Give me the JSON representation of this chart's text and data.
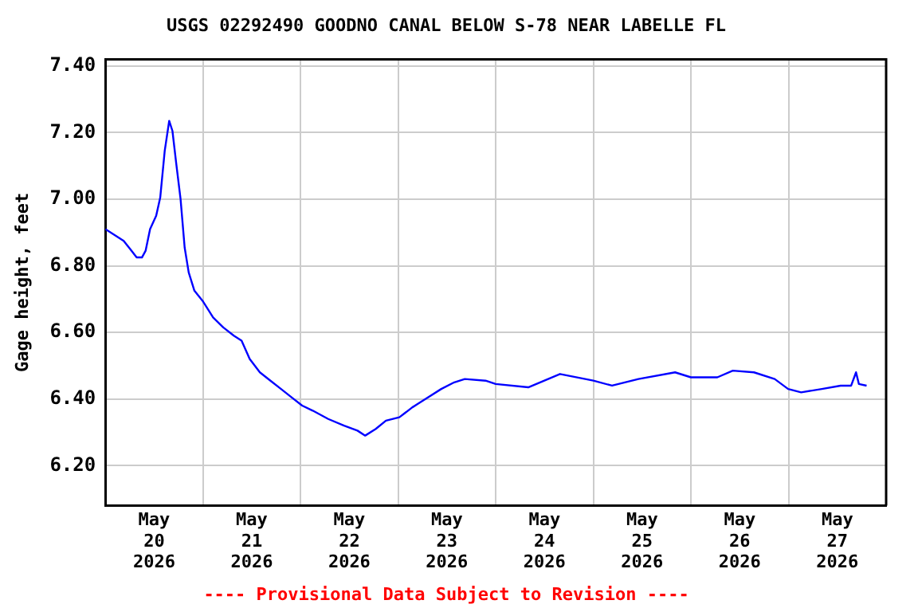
{
  "chart_data": {
    "type": "line",
    "title": "USGS 02292490 GOODNO CANAL BELOW S-78 NEAR LABELLE FL",
    "ylabel": "Gage height, feet",
    "annotations": [
      "---- Provisional Data Subject to Revision ----"
    ],
    "x": [
      "2026-05-20T00:00",
      "2026-05-20T02:36",
      "2026-05-20T04:30",
      "2026-05-20T06:06",
      "2026-05-20T07:42",
      "2026-05-20T09:00",
      "2026-05-20T09:54",
      "2026-05-20T11:00",
      "2026-05-20T12:30",
      "2026-05-20T13:30",
      "2026-05-20T14:36",
      "2026-05-20T15:42",
      "2026-05-20T16:30",
      "2026-05-20T17:24",
      "2026-05-20T18:30",
      "2026-05-20T19:30",
      "2026-05-20T20:30",
      "2026-05-20T21:54",
      "2026-05-20T23:54",
      "2026-05-21T02:30",
      "2026-05-21T05:00",
      "2026-05-21T07:36",
      "2026-05-21T09:30",
      "2026-05-21T11:30",
      "2026-05-21T14:00",
      "2026-05-21T16:36",
      "2026-05-21T19:12",
      "2026-05-21T21:48",
      "2026-05-22T00:24",
      "2026-05-22T03:00",
      "2026-05-22T06:48",
      "2026-05-22T10:42",
      "2026-05-22T14:00",
      "2026-05-22T15:54",
      "2026-05-22T18:30",
      "2026-05-22T21:00",
      "2026-05-23T00:18",
      "2026-05-23T03:30",
      "2026-05-23T07:24",
      "2026-05-23T10:36",
      "2026-05-23T13:48",
      "2026-05-23T16:24",
      "2026-05-23T21:30",
      "2026-05-24T00:00",
      "2026-05-24T08:00",
      "2026-05-24T15:48",
      "2026-05-25T00:00",
      "2026-05-25T04:36",
      "2026-05-25T11:06",
      "2026-05-25T20:06",
      "2026-05-26T00:00",
      "2026-05-26T06:30",
      "2026-05-26T10:18",
      "2026-05-26T15:30",
      "2026-05-26T20:36",
      "2026-05-26T23:54",
      "2026-05-27T03:06",
      "2026-05-27T08:12",
      "2026-05-27T12:48",
      "2026-05-27T15:24",
      "2026-05-27T16:36",
      "2026-05-27T17:18",
      "2026-05-27T19:12"
    ],
    "series": [
      {
        "color": "#0000ff",
        "values": [
          6.91,
          6.89,
          6.875,
          6.85,
          6.825,
          6.825,
          6.845,
          6.91,
          6.95,
          7.005,
          7.145,
          7.235,
          7.205,
          7.11,
          7.0,
          6.855,
          6.78,
          6.725,
          6.695,
          6.645,
          6.615,
          6.59,
          6.575,
          6.52,
          6.48,
          6.455,
          6.43,
          6.405,
          6.38,
          6.365,
          6.34,
          6.32,
          6.305,
          6.29,
          6.31,
          6.335,
          6.345,
          6.375,
          6.405,
          6.43,
          6.45,
          6.46,
          6.455,
          6.445,
          6.435,
          6.475,
          6.455,
          6.44,
          6.46,
          6.48,
          6.465,
          6.465,
          6.485,
          6.48,
          6.46,
          6.43,
          6.42,
          6.43,
          6.44,
          6.44,
          6.48,
          6.445,
          6.44
        ]
      }
    ],
    "xlim": [
      "2026-05-20T00:00",
      "2026-05-28T00:00"
    ],
    "xticks": [
      {
        "value": "2026-05-20T12:00",
        "label": "May 20 2026"
      },
      {
        "value": "2026-05-21T00:00",
        "label": null
      },
      {
        "value": "2026-05-21T12:00",
        "label": "May 21 2026"
      },
      {
        "value": "2026-05-22T00:00",
        "label": null
      },
      {
        "value": "2026-05-22T12:00",
        "label": "May 22 2026"
      },
      {
        "value": "2026-05-23T00:00",
        "label": null
      },
      {
        "value": "2026-05-23T12:00",
        "label": "May 23 2026"
      },
      {
        "value": "2026-05-24T00:00",
        "label": null
      },
      {
        "value": "2026-05-24T12:00",
        "label": "May 24 2026"
      },
      {
        "value": "2026-05-25T00:00",
        "label": null
      },
      {
        "value": "2026-05-25T12:00",
        "label": "May 25 2026"
      },
      {
        "value": "2026-05-26T00:00",
        "label": null
      },
      {
        "value": "2026-05-26T12:00",
        "label": "May 26 2026"
      },
      {
        "value": "2026-05-27T00:00",
        "label": null
      },
      {
        "value": "2026-05-27T12:00",
        "label": "May 27 2026"
      }
    ],
    "ylim": [
      6.08,
      7.42
    ],
    "yticks": [
      {
        "value": 6.2,
        "label": "6.20"
      },
      {
        "value": 6.4,
        "label": "6.40"
      },
      {
        "value": 6.6,
        "label": "6.60"
      },
      {
        "value": 6.8,
        "label": "6.80"
      },
      {
        "value": 7.0,
        "label": "7.00"
      },
      {
        "value": 7.2,
        "label": "7.20"
      },
      {
        "value": 7.4,
        "label": "7.40"
      }
    ],
    "grid": true,
    "legend": false
  }
}
